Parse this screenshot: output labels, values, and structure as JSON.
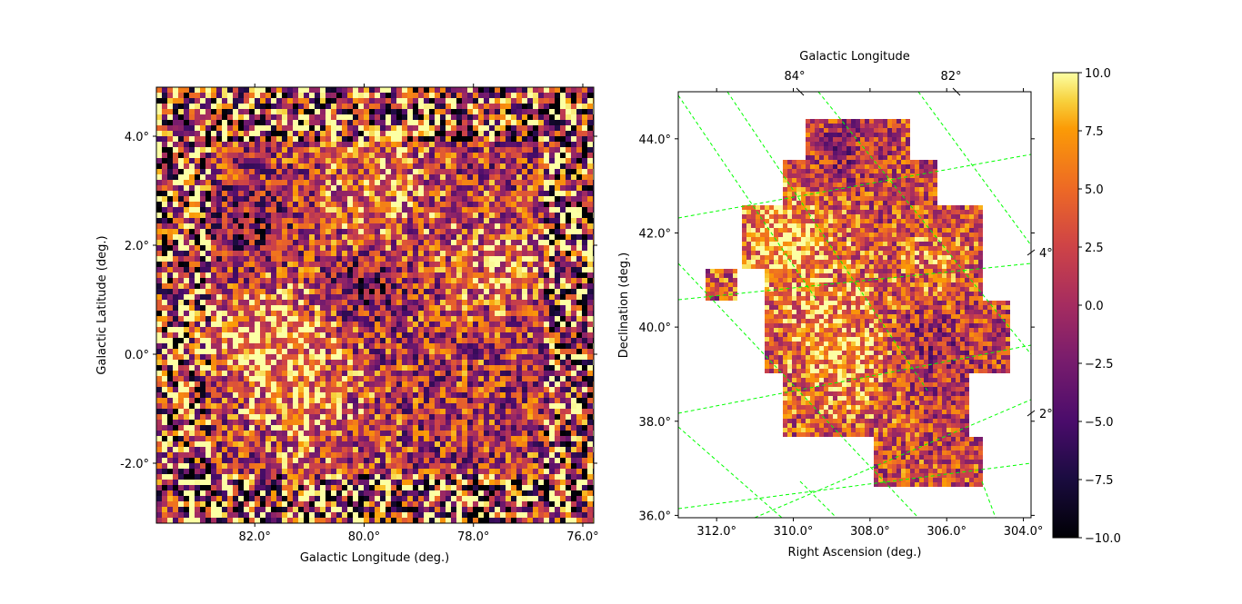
{
  "colors": {
    "colormap": "inferno",
    "grid": "#00ff00",
    "axes": "#000000",
    "background": "#ffffff"
  },
  "chart_data": [
    {
      "type": "heatmap",
      "panel": "left",
      "projection": "galactic",
      "xlabel": "Galactic Longitude (deg.)",
      "ylabel": "Galactic Latitude (deg.)",
      "xlim": [
        83.8,
        75.8
      ],
      "ylim": [
        -3.1,
        4.9
      ],
      "x_ticks": [
        {
          "value": 82,
          "label": "82.0°"
        },
        {
          "value": 80,
          "label": "80.0°"
        },
        {
          "value": 78,
          "label": "78.0°"
        },
        {
          "value": 76,
          "label": "76.0°"
        }
      ],
      "y_ticks": [
        {
          "value": 4,
          "label": "4.0°"
        },
        {
          "value": 2,
          "label": "2.0°"
        },
        {
          "value": 0,
          "label": "0.0°"
        },
        {
          "value": -2,
          "label": "-2.0°"
        }
      ],
      "grid": false,
      "value_range": [
        -10,
        10
      ]
    },
    {
      "type": "heatmap",
      "panel": "right",
      "projection": "equatorial",
      "xlabel": "Right Ascension (deg.)",
      "ylabel": "Declination (deg.)",
      "top_xlabel": "Galactic Longitude",
      "xlim": [
        313.0,
        303.8
      ],
      "ylim": [
        35.95,
        45.0
      ],
      "x_ticks": [
        {
          "value": 312,
          "label": "312.0°"
        },
        {
          "value": 310,
          "label": "310.0°"
        },
        {
          "value": 308,
          "label": "308.0°"
        },
        {
          "value": 306,
          "label": "306.0°"
        },
        {
          "value": 304,
          "label": "304.0°"
        }
      ],
      "y_ticks": [
        {
          "value": 36,
          "label": "36.0°"
        },
        {
          "value": 38,
          "label": "38.0°"
        },
        {
          "value": 40,
          "label": "40.0°"
        },
        {
          "value": 42,
          "label": "42.0°"
        },
        {
          "value": 44,
          "label": "44.0°"
        }
      ],
      "top_ticks": [
        {
          "value": 84,
          "label": "84°"
        },
        {
          "value": 82,
          "label": "82°"
        }
      ],
      "right_ticks": [
        {
          "value": 4,
          "label": "4°"
        },
        {
          "value": 2,
          "label": "2°"
        }
      ],
      "grid": true,
      "value_range": [
        -10,
        10
      ]
    }
  ],
  "colorbar": {
    "min": -10,
    "max": 10,
    "ticks": [
      {
        "value": 10,
        "label": "10.0"
      },
      {
        "value": 7.5,
        "label": "7.5"
      },
      {
        "value": 5,
        "label": "5.0"
      },
      {
        "value": 2.5,
        "label": "2.5"
      },
      {
        "value": 0,
        "label": "0.0"
      },
      {
        "value": -2.5,
        "label": "−2.5"
      },
      {
        "value": -5,
        "label": "−5.0"
      },
      {
        "value": -7.5,
        "label": "−7.5"
      },
      {
        "value": -10,
        "label": "−10.0"
      }
    ]
  }
}
